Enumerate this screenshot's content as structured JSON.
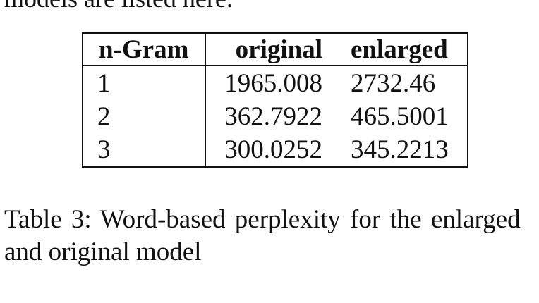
{
  "top_text": "models are listed here.",
  "table": {
    "headers": [
      "n-Gram",
      "original",
      "enlarged"
    ],
    "rows": [
      [
        "1",
        "1965.008",
        "2732.46"
      ],
      [
        "2",
        "362.7922",
        "465.5001"
      ],
      [
        "3",
        "300.0252",
        "345.2213"
      ]
    ]
  },
  "caption": {
    "label": "Table 3:",
    "text_line1": "Word-based perplexity for the enlarged",
    "text_line2": "and original model"
  }
}
